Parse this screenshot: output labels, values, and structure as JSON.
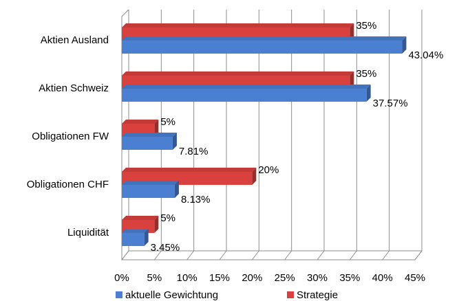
{
  "chart_data": {
    "type": "bar",
    "orientation": "horizontal",
    "categories": [
      "Aktien Ausland",
      "Aktien Schweiz",
      "Obligationen FW",
      "Obligationen CHF",
      "Liquidität"
    ],
    "series": [
      {
        "name": "Strategie",
        "color": "#d9413e",
        "values": [
          35,
          35,
          5,
          20,
          5
        ],
        "value_labels": [
          "35%",
          "35%",
          "5%",
          "20%",
          "5%"
        ]
      },
      {
        "name": "aktuelle Gewichtung",
        "color": "#4a7fd1",
        "values": [
          43.04,
          37.57,
          7.81,
          8.13,
          3.45
        ],
        "value_labels": [
          "43.04%",
          "37.57%",
          "7.81%",
          "8.13%",
          "3.45%"
        ]
      }
    ],
    "xlim": [
      0,
      45
    ],
    "xticks": [
      {
        "value": 0,
        "label": "0%"
      },
      {
        "value": 5,
        "label": "5%"
      },
      {
        "value": 10,
        "label": "10%"
      },
      {
        "value": 15,
        "label": "15%"
      },
      {
        "value": 20,
        "label": "20%"
      },
      {
        "value": 25,
        "label": "25%"
      },
      {
        "value": 30,
        "label": "30%"
      },
      {
        "value": 35,
        "label": "35%"
      },
      {
        "value": 40,
        "label": "40%"
      },
      {
        "value": 45,
        "label": "45%"
      }
    ],
    "grid": true,
    "legend": "bottom"
  }
}
